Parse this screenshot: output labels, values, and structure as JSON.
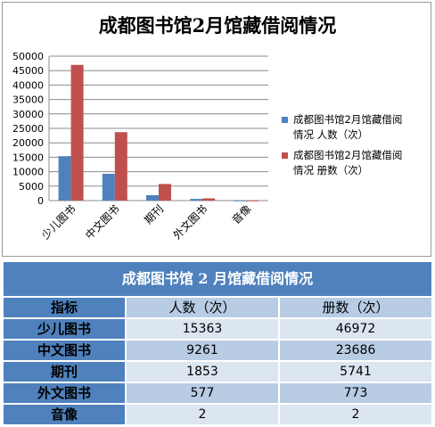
{
  "chart_data": {
    "type": "bar",
    "title": "成都图书馆2月馆藏借阅情况",
    "categories": [
      "少儿图书",
      "中文图书",
      "期刊",
      "外文图书",
      "音像"
    ],
    "series": [
      {
        "name": "成都图书馆2月馆藏借阅情况 人数（次）",
        "values": [
          15363,
          9261,
          1853,
          577,
          2
        ],
        "color": "#4f81bd"
      },
      {
        "name": "成都图书馆2月馆藏借阅情况 册数（次）",
        "values": [
          46972,
          23686,
          5741,
          773,
          2
        ],
        "color": "#c0504d"
      }
    ],
    "ylim": [
      0,
      50000
    ],
    "yticks": [
      0,
      5000,
      10000,
      15000,
      20000,
      25000,
      30000,
      35000,
      40000,
      45000,
      50000
    ],
    "grid": true,
    "legend_position": "right"
  },
  "table": {
    "title": "成都图书馆 2 月馆藏借阅情况",
    "header": [
      "指标",
      "人数（次）",
      "册数（次）"
    ],
    "rows": [
      [
        "少儿图书",
        "15363",
        "46972"
      ],
      [
        "中文图书",
        "9261",
        "23686"
      ],
      [
        "期刊",
        "1853",
        "5741"
      ],
      [
        "外文图书",
        "577",
        "773"
      ],
      [
        "音像",
        "2",
        "2"
      ]
    ]
  }
}
